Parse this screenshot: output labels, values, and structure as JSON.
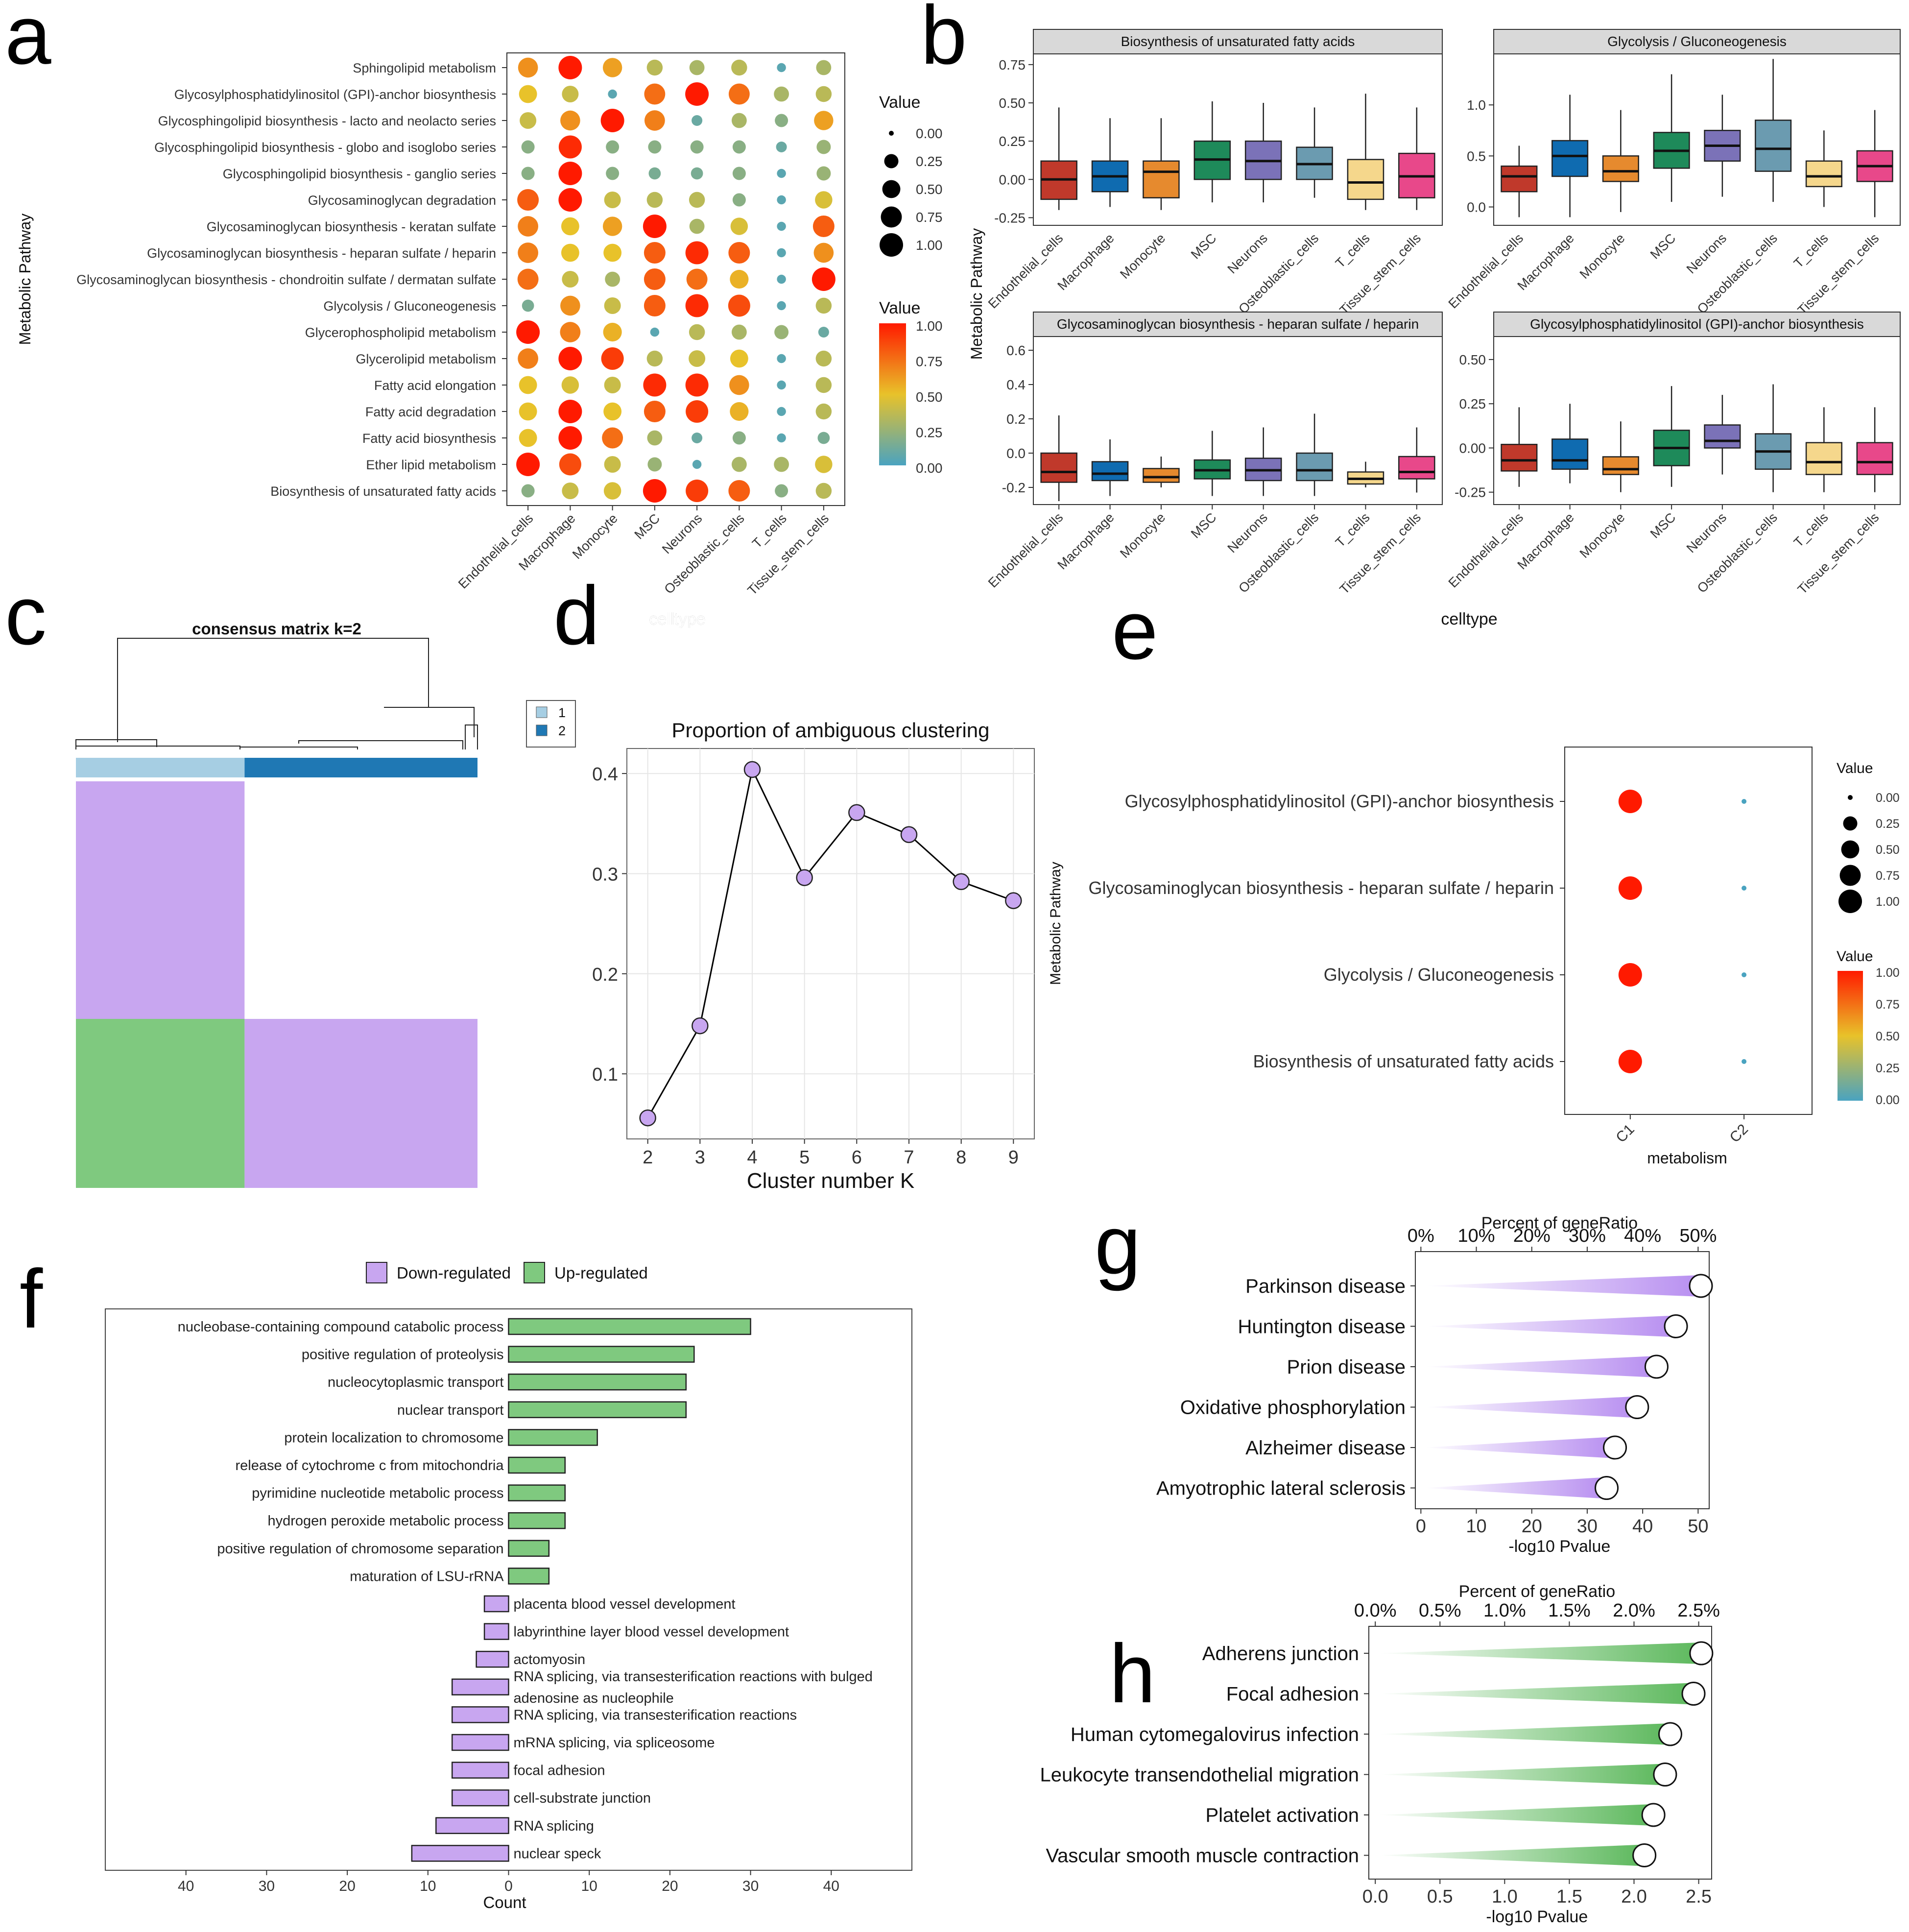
{
  "palette": {
    "lowcol": "#4aa3c0",
    "midcol": "#e8c22a",
    "highcol": "#ff1a00",
    "box": [
      "#c0392b",
      "#0f6bb0",
      "#e68a2e",
      "#1e8a5a",
      "#7b72b8",
      "#6b9bb0",
      "#f5d78c",
      "#e8488a"
    ],
    "down": "#c8a6f0",
    "up": "#7fc97f",
    "cm_light": "#a6cee3",
    "cm_dark": "#1f78b4"
  },
  "chart_data": [
    {
      "panel": "a",
      "type": "dot",
      "ylabel": "Metabolic Pathway",
      "xlabel": "celltype",
      "celltypes": [
        "Endothelial_cells",
        "Macrophage",
        "Monocyte",
        "MSC",
        "Neurons",
        "Osteoblastic_cells",
        "T_cells",
        "Tissue_stem_cells"
      ],
      "pathways": [
        "Sphingolipid metabolism",
        "Glycosylphosphatidylinositol (GPI)-anchor biosynthesis",
        "Glycosphingolipid biosynthesis - lacto and neolacto series",
        "Glycosphingolipid biosynthesis - globo and isoglobo series",
        "Glycosphingolipid biosynthesis - ganglio series",
        "Glycosaminoglycan degradation",
        "Glycosaminoglycan biosynthesis - keratan sulfate",
        "Glycosaminoglycan biosynthesis - heparan sulfate / heparin",
        "Glycosaminoglycan biosynthesis - chondroitin sulfate / dermatan sulfate",
        "Glycolysis / Gluconeogenesis",
        "Glycerophospholipid metabolism",
        "Glycerolipid metabolism",
        "Fatty acid elongation",
        "Fatty acid degradation",
        "Fatty acid biosynthesis",
        "Ether lipid metabolism",
        "Biosynthesis of unsaturated fatty acids"
      ],
      "values": [
        [
          0.65,
          1.0,
          0.6,
          0.35,
          0.3,
          0.35,
          0.05,
          0.3
        ],
        [
          0.5,
          0.4,
          0.05,
          0.75,
          1.0,
          0.75,
          0.3,
          0.35
        ],
        [
          0.4,
          0.65,
          1.0,
          0.7,
          0.1,
          0.3,
          0.2,
          0.6
        ],
        [
          0.2,
          0.95,
          0.2,
          0.2,
          0.2,
          0.2,
          0.1,
          0.25
        ],
        [
          0.2,
          1.0,
          0.2,
          0.15,
          0.15,
          0.2,
          0.05,
          0.25
        ],
        [
          0.8,
          1.0,
          0.4,
          0.35,
          0.35,
          0.2,
          0.05,
          0.45
        ],
        [
          0.7,
          0.5,
          0.6,
          1.0,
          0.3,
          0.45,
          0.05,
          0.8
        ],
        [
          0.7,
          0.5,
          0.5,
          0.8,
          0.95,
          0.8,
          0.05,
          0.65
        ],
        [
          0.75,
          0.4,
          0.3,
          0.8,
          0.75,
          0.55,
          0.05,
          1.0
        ],
        [
          0.15,
          0.65,
          0.4,
          0.8,
          0.95,
          0.85,
          0.05,
          0.35
        ],
        [
          1.0,
          0.7,
          0.55,
          0.05,
          0.35,
          0.3,
          0.25,
          0.1
        ],
        [
          0.7,
          1.0,
          0.9,
          0.35,
          0.4,
          0.5,
          0.05,
          0.35
        ],
        [
          0.5,
          0.45,
          0.4,
          0.95,
          0.95,
          0.65,
          0.05,
          0.35
        ],
        [
          0.5,
          1.0,
          0.5,
          0.8,
          0.9,
          0.55,
          0.05,
          0.35
        ],
        [
          0.5,
          1.0,
          0.75,
          0.3,
          0.1,
          0.2,
          0.05,
          0.15
        ],
        [
          1.0,
          0.85,
          0.4,
          0.25,
          0.05,
          0.3,
          0.3,
          0.45
        ],
        [
          0.2,
          0.4,
          0.45,
          1.0,
          0.9,
          0.8,
          0.2,
          0.35
        ]
      ],
      "legend_size_title": "Value",
      "legend_size_labels": [
        "0.00",
        "0.25",
        "0.50",
        "0.75",
        "1.00"
      ],
      "legend_color_title": "Value",
      "legend_color_labels": [
        "1.00",
        "0.75",
        "0.50",
        "0.25",
        "0.00"
      ]
    },
    {
      "panel": "b",
      "type": "boxplot",
      "ylabel": "Metabolic Pathway",
      "xlabel": "celltype",
      "celltypes": [
        "Endothelial_cells",
        "Macrophage",
        "Monocyte",
        "MSC",
        "Neurons",
        "Osteoblastic_cells",
        "T_cells",
        "Tissue_stem_cells"
      ],
      "facets": [
        {
          "title": "Biosynthesis of unsaturated fatty acids",
          "ylim": [
            -0.3,
            0.82
          ],
          "ticks": [
            -0.25,
            0,
            0.25,
            0.5,
            0.75
          ],
          "ticklabels": [
            "-0.25",
            "0.00",
            "0.25",
            "0.50",
            "0.75"
          ],
          "stats": [
            [
              -0.2,
              -0.13,
              0.0,
              0.12,
              0.47
            ],
            [
              -0.18,
              -0.08,
              0.02,
              0.12,
              0.4
            ],
            [
              -0.2,
              -0.12,
              0.05,
              0.12,
              0.4
            ],
            [
              -0.15,
              0.0,
              0.13,
              0.25,
              0.51
            ],
            [
              -0.15,
              0.0,
              0.12,
              0.25,
              0.5
            ],
            [
              -0.12,
              0.0,
              0.1,
              0.21,
              0.47
            ],
            [
              -0.2,
              -0.13,
              -0.02,
              0.13,
              0.56
            ],
            [
              -0.2,
              -0.12,
              0.02,
              0.17,
              0.47
            ]
          ]
        },
        {
          "title": "Glycolysis / Gluconeogenesis",
          "ylim": [
            -0.18,
            1.5
          ],
          "ticks": [
            0,
            0.5,
            1.0
          ],
          "ticklabels": [
            "0.0",
            "0.5",
            "1.0"
          ],
          "stats": [
            [
              -0.1,
              0.15,
              0.3,
              0.4,
              0.6
            ],
            [
              -0.1,
              0.3,
              0.5,
              0.65,
              1.1
            ],
            [
              -0.05,
              0.25,
              0.35,
              0.5,
              0.95
            ],
            [
              0.05,
              0.38,
              0.55,
              0.73,
              1.3
            ],
            [
              0.1,
              0.45,
              0.6,
              0.75,
              1.1
            ],
            [
              0.05,
              0.35,
              0.57,
              0.85,
              1.45
            ],
            [
              0.0,
              0.2,
              0.3,
              0.45,
              0.75
            ],
            [
              -0.1,
              0.25,
              0.4,
              0.55,
              0.95
            ]
          ]
        },
        {
          "title": "Glycosaminoglycan biosynthesis - heparan sulfate / heparin",
          "ylim": [
            -0.3,
            0.68
          ],
          "ticks": [
            -0.2,
            0,
            0.2,
            0.4,
            0.6
          ],
          "ticklabels": [
            "-0.2",
            "0.0",
            "0.2",
            "0.4",
            "0.6"
          ],
          "stats": [
            [
              -0.28,
              -0.17,
              -0.11,
              0.0,
              0.22
            ],
            [
              -0.25,
              -0.16,
              -0.12,
              -0.05,
              0.08
            ],
            [
              -0.2,
              -0.17,
              -0.14,
              -0.09,
              -0.02
            ],
            [
              -0.25,
              -0.15,
              -0.1,
              -0.04,
              0.13
            ],
            [
              -0.25,
              -0.16,
              -0.1,
              -0.03,
              0.15
            ],
            [
              -0.25,
              -0.16,
              -0.1,
              0.0,
              0.23
            ],
            [
              -0.2,
              -0.18,
              -0.15,
              -0.11,
              -0.05
            ],
            [
              -0.23,
              -0.15,
              -0.11,
              -0.02,
              0.15
            ]
          ]
        },
        {
          "title": "Glycosylphosphatidylinositol (GPI)-anchor biosynthesis",
          "ylim": [
            -0.32,
            0.63
          ],
          "ticks": [
            -0.25,
            0,
            0.25,
            0.5
          ],
          "ticklabels": [
            "-0.25",
            "0.00",
            "0.25",
            "0.50"
          ],
          "stats": [
            [
              -0.22,
              -0.13,
              -0.07,
              0.02,
              0.23
            ],
            [
              -0.2,
              -0.12,
              -0.07,
              0.05,
              0.25
            ],
            [
              -0.25,
              -0.15,
              -0.12,
              -0.05,
              0.15
            ],
            [
              -0.22,
              -0.1,
              0.0,
              0.1,
              0.35
            ],
            [
              -0.15,
              0.0,
              0.04,
              0.13,
              0.3
            ],
            [
              -0.25,
              -0.12,
              -0.02,
              0.08,
              0.36
            ],
            [
              -0.25,
              -0.15,
              -0.08,
              0.03,
              0.23
            ],
            [
              -0.25,
              -0.15,
              -0.08,
              0.03,
              0.23
            ]
          ]
        }
      ]
    },
    {
      "panel": "c",
      "type": "consensus_heatmap",
      "title": "consensus matrix k=2",
      "legend": [
        "1",
        "2"
      ],
      "cluster_fraction": [
        0.42,
        0.58
      ]
    },
    {
      "panel": "d",
      "type": "line",
      "title": "Proportion of ambiguous clustering",
      "xlabel": "Cluster number K",
      "x": [
        2,
        3,
        4,
        5,
        6,
        7,
        8,
        9
      ],
      "y": [
        0.056,
        0.148,
        0.404,
        0.296,
        0.361,
        0.339,
        0.292,
        0.273
      ],
      "xlim": [
        1.6,
        9.4
      ],
      "ylim": [
        0.035,
        0.425
      ],
      "yticks": [
        0.1,
        0.2,
        0.3,
        0.4
      ],
      "yticklabels": [
        "0.1",
        "0.2",
        "0.3",
        "0.4"
      ]
    },
    {
      "panel": "e",
      "type": "dot",
      "ylabel": "Metabolic Pathway",
      "xlabel": "metabolism",
      "clusters": [
        "C1",
        "C2"
      ],
      "pathways": [
        "Glycosylphosphatidylinositol (GPI)-anchor biosynthesis",
        "Glycosaminoglycan biosynthesis - heparan sulfate / heparin",
        "Glycolysis / Gluconeogenesis",
        "Biosynthesis of unsaturated fatty acids"
      ],
      "values": [
        [
          1.0,
          0.0
        ],
        [
          1.0,
          0.0
        ],
        [
          1.0,
          0.0
        ],
        [
          1.0,
          0.0
        ]
      ],
      "legend_size_title": "Value",
      "legend_size_labels": [
        "0.00",
        "0.25",
        "0.50",
        "0.75",
        "1.00"
      ],
      "legend_color_title": "Value",
      "legend_color_labels": [
        "1.00",
        "0.75",
        "0.50",
        "0.25",
        "0.00"
      ]
    },
    {
      "panel": "f",
      "type": "bar",
      "xlabel": "Count",
      "legend": [
        "Down-regulated",
        "Up-regulated"
      ],
      "xlim": [
        -50,
        50
      ],
      "xticks": [
        -40,
        -30,
        -20,
        -10,
        0,
        10,
        20,
        30,
        40
      ],
      "xticklabels": [
        "40",
        "30",
        "20",
        "10",
        "0",
        "10",
        "20",
        "30",
        "40"
      ],
      "terms": [
        {
          "label": "nucleobase-containing compound catabolic process",
          "value": 30,
          "dir": "up"
        },
        {
          "label": "positive regulation of proteolysis",
          "value": 23,
          "dir": "up"
        },
        {
          "label": "nucleocytoplasmic transport",
          "value": 22,
          "dir": "up"
        },
        {
          "label": "nuclear transport",
          "value": 22,
          "dir": "up"
        },
        {
          "label": "protein localization to chromosome",
          "value": 11,
          "dir": "up"
        },
        {
          "label": "release of cytochrome c from mitochondria",
          "value": 7,
          "dir": "up"
        },
        {
          "label": "pyrimidine nucleotide metabolic process",
          "value": 7,
          "dir": "up"
        },
        {
          "label": "hydrogen peroxide metabolic process",
          "value": 7,
          "dir": "up"
        },
        {
          "label": "positive regulation of chromosome separation",
          "value": 5,
          "dir": "up"
        },
        {
          "label": "maturation of LSU-rRNA",
          "value": 5,
          "dir": "up"
        },
        {
          "label": "placenta blood vessel development",
          "value": 3,
          "dir": "down"
        },
        {
          "label": "labyrinthine layer blood vessel development",
          "value": 3,
          "dir": "down"
        },
        {
          "label": "actomyosin",
          "value": 4,
          "dir": "down"
        },
        {
          "label": "RNA splicing, via transesterification reactions with bulged",
          "label2": "adenosine as nucleophile",
          "value": 7,
          "dir": "down"
        },
        {
          "label": "RNA splicing, via transesterification reactions",
          "value": 7,
          "dir": "down"
        },
        {
          "label": "mRNA splicing, via spliceosome",
          "value": 7,
          "dir": "down"
        },
        {
          "label": "focal adhesion",
          "value": 7,
          "dir": "down"
        },
        {
          "label": "cell-substrate junction",
          "value": 7,
          "dir": "down"
        },
        {
          "label": "RNA splicing",
          "value": 9,
          "dir": "down"
        },
        {
          "label": "nuclear speck",
          "value": 12,
          "dir": "down"
        }
      ]
    },
    {
      "panel": "g",
      "type": "lollipop",
      "top_label": "Percent of geneRatio",
      "xlabel": "-log10 Pvalue",
      "top_ticks": [
        "0%",
        "10%",
        "20%",
        "30%",
        "40%",
        "50%"
      ],
      "top_values": [
        0,
        10,
        20,
        30,
        40,
        50
      ],
      "bottom_ticks": [
        "0",
        "10",
        "20",
        "30",
        "40",
        "50"
      ],
      "bottom_values": [
        0,
        10,
        20,
        30,
        40,
        50
      ],
      "xlim": [
        -1,
        52
      ],
      "terms": [
        "Parkinson disease",
        "Huntington disease",
        "Prion disease",
        "Oxidative phosphorylation",
        "Alzheimer disease",
        "Amyotrophic lateral sclerosis"
      ],
      "values": [
        50.5,
        46.0,
        42.5,
        39.0,
        35.0,
        33.5
      ]
    },
    {
      "panel": "h",
      "type": "lollipop",
      "top_label": "Percent of geneRatio",
      "xlabel": "-log10 Pvalue",
      "top_ticks": [
        "0.0%",
        "0.5%",
        "1.0%",
        "1.5%",
        "2.0%",
        "2.5%"
      ],
      "top_values": [
        0,
        0.5,
        1.0,
        1.5,
        2.0,
        2.5
      ],
      "bottom_ticks": [
        "0.0",
        "0.5",
        "1.0",
        "1.5",
        "2.0",
        "2.5"
      ],
      "bottom_values": [
        0,
        0.5,
        1.0,
        1.5,
        2.0,
        2.5
      ],
      "xlim": [
        -0.05,
        2.6
      ],
      "terms": [
        "Adherens junction",
        "Focal adhesion",
        "Human cytomegalovirus infection",
        "Leukocyte transendothelial migration",
        "Platelet activation",
        "Vascular smooth muscle contraction"
      ],
      "values": [
        2.52,
        2.46,
        2.28,
        2.24,
        2.15,
        2.08
      ]
    }
  ],
  "panel_letters": [
    "a",
    "b",
    "c",
    "d",
    "e",
    "f",
    "g",
    "h"
  ]
}
